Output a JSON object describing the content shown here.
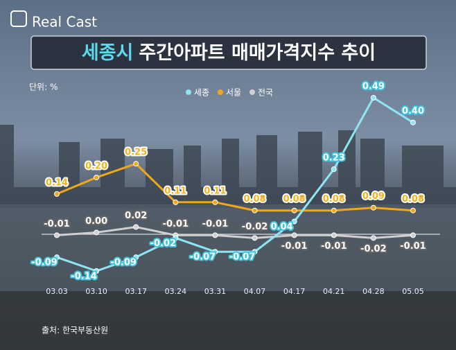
{
  "brand": "Real Cast",
  "chart_data": {
    "type": "line",
    "title_parts": [
      "세종시",
      "주간아파트 매매가격지수 추이"
    ],
    "unit_note": "단위: %",
    "source": "출처: 한국부동산원",
    "categories": [
      "03.03",
      "03.10",
      "03.17",
      "03.24",
      "03.31",
      "04.07",
      "04.17",
      "04.21",
      "04.28",
      "05.05"
    ],
    "series": [
      {
        "name": "세종",
        "color": "#8ee6f5",
        "values": [
          -0.09,
          -0.14,
          -0.09,
          -0.02,
          -0.07,
          -0.07,
          0.04,
          0.23,
          0.49,
          0.4
        ],
        "value_labels": [
          "-0.09",
          "-0.14",
          "-0.09",
          "-0.02",
          "-0.07",
          "-0.07",
          "0.04",
          "0.23",
          "0.49",
          "0.40"
        ]
      },
      {
        "name": "서울",
        "color": "#f0a818",
        "values": [
          0.14,
          0.2,
          0.25,
          0.11,
          0.11,
          0.08,
          0.08,
          0.08,
          0.09,
          0.08
        ],
        "value_labels": [
          "0.14",
          "0.20",
          "0.25",
          "0.11",
          "0.11",
          "0.08",
          "0.08",
          "0.08",
          "0.09",
          "0.08"
        ]
      },
      {
        "name": "전국",
        "color": "#cfcfcf",
        "values": [
          -0.01,
          0.0,
          0.02,
          -0.01,
          -0.01,
          -0.02,
          -0.01,
          -0.01,
          -0.02,
          -0.01
        ],
        "value_labels": [
          "-0.01",
          "0.00",
          "0.02",
          "-0.01",
          "-0.01",
          "-0.02",
          "-0.01",
          "-0.01",
          "-0.02",
          "-0.01"
        ]
      }
    ]
  }
}
